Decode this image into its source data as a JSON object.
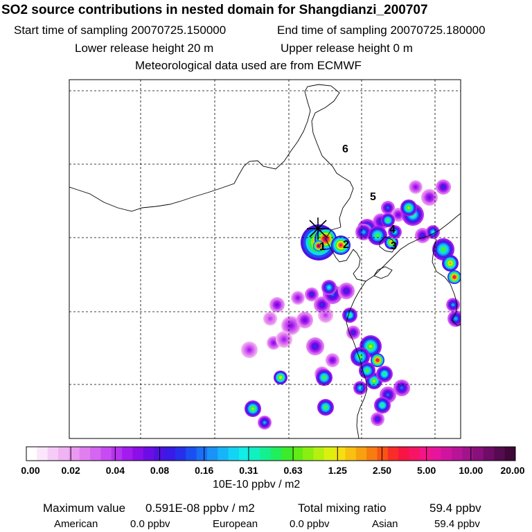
{
  "header": {
    "title": "SO2 source contributions in nested domain for Shangdianzi_200707",
    "start_label": "Start time of sampling 20070725.150000",
    "end_label": "End time of sampling 20070725.180000",
    "lower_label": "Lower release height   20 m",
    "upper_label": "Upper release height    0 m",
    "met_label": "Meteorological data used are from ECMWF"
  },
  "chart_data": {
    "type": "heatmap",
    "title": "SO2 source contributions in nested domain for Shangdianzi_200707",
    "colorbar": {
      "ticks": [
        "0.00",
        "0.02",
        "0.04",
        "0.08",
        "0.16",
        "0.31",
        "0.63",
        "1.25",
        "2.50",
        "5.00",
        "10.00",
        "20.00"
      ],
      "unit": "10E-10 ppbv / m2",
      "colors": [
        "#ffffff",
        "#fbe6fb",
        "#f5ccf7",
        "#f0b3f3",
        "#eb99f0",
        "#e17ff0",
        "#d466f2",
        "#c64cf2",
        "#b733f0",
        "#a21cee",
        "#8a0fe8",
        "#6d0de5",
        "#4f12e3",
        "#3a1ae6",
        "#2630ea",
        "#1a4ff0",
        "#1a6ff4",
        "#1a92f7",
        "#18b4f8",
        "#14d4f4",
        "#10eee6",
        "#10f0c0",
        "#14f090",
        "#20ee5c",
        "#3aec2c",
        "#60ec14",
        "#8aee10",
        "#b4f010",
        "#dcf010",
        "#f4e010",
        "#f8c010",
        "#f8a010",
        "#f87c10",
        "#f85414",
        "#f82c28",
        "#f81444",
        "#f81464",
        "#f41488",
        "#e8149c",
        "#d014a0",
        "#b81498",
        "#a0148c",
        "#880f7c",
        "#6e0c66",
        "#560a50",
        "#400838"
      ]
    },
    "receptor_labels": [
      "1",
      "2",
      "3",
      "4",
      "5",
      "6"
    ],
    "maximum": {
      "label": "Maximum value",
      "value": "0.591E-08 ppbv / m2"
    },
    "total": {
      "label": "Total mixing ratio",
      "value": "59.4 ppbv"
    },
    "breakdown": [
      {
        "region": "American",
        "value": "0.0 ppbv"
      },
      {
        "region": "European",
        "value": "0.0 ppbv"
      },
      {
        "region": "Asian",
        "value": "59.4 ppbv"
      }
    ],
    "plumes": [
      {
        "lvl": 0.18,
        "r": 10
      },
      {
        "lvl": 0.22,
        "r": 14
      },
      {
        "lvl": 0.25,
        "r": 12
      },
      {
        "lvl": 0.18,
        "r": 11
      },
      {
        "lvl": 0.22,
        "r": 10
      },
      {
        "lvl": 0.2,
        "r": 12
      },
      {
        "lvl": 0.25,
        "r": 11
      },
      {
        "lvl": 0.22,
        "r": 10
      },
      {
        "lvl": 0.2,
        "r": 12
      },
      {
        "lvl": 0.3,
        "r": 12
      },
      {
        "lvl": 0.35,
        "r": 14
      },
      {
        "lvl": 0.3,
        "r": 12
      },
      {
        "lvl": 0.25,
        "r": 10
      },
      {
        "lvl": 0.28,
        "r": 11
      },
      {
        "lvl": 0.3,
        "r": 13
      },
      {
        "lvl": 0.22,
        "r": 10
      },
      {
        "lvl": 0.25,
        "r": 12
      },
      {
        "lvl": 0.3,
        "r": 11
      },
      {
        "lvl": 0.3,
        "r": 11
      },
      {
        "lvl": 0.35,
        "r": 10
      },
      {
        "lvl": 0.32,
        "r": 12
      },
      {
        "lvl": 0.25,
        "r": 10
      },
      {
        "lvl": 0.5,
        "r": 16
      },
      {
        "lvl": 0.6,
        "r": 12
      },
      {
        "lvl": 0.45,
        "r": 14
      },
      {
        "lvl": 0.4,
        "r": 12
      },
      {
        "lvl": 0.55,
        "r": 14
      },
      {
        "lvl": 0.7,
        "r": 10
      },
      {
        "lvl": 0.45,
        "r": 10
      },
      {
        "lvl": 0.35,
        "r": 12
      },
      {
        "lvl": 0.5,
        "r": 12
      },
      {
        "lvl": 0.3,
        "r": 10
      },
      {
        "lvl": 0.75,
        "r": 26
      },
      {
        "lvl": 0.9,
        "r": 16
      },
      {
        "lvl": 0.98,
        "r": 8
      },
      {
        "lvl": 0.8,
        "r": 14
      },
      {
        "lvl": 0.55,
        "r": 16
      },
      {
        "lvl": 0.7,
        "r": 12
      },
      {
        "lvl": 0.85,
        "r": 10
      },
      {
        "lvl": 0.4,
        "r": 10
      },
      {
        "lvl": 0.4,
        "r": 12
      },
      {
        "lvl": 0.45,
        "r": 10
      },
      {
        "lvl": 0.6,
        "r": 16
      },
      {
        "lvl": 0.85,
        "r": 10
      },
      {
        "lvl": 0.55,
        "r": 14
      },
      {
        "lvl": 0.6,
        "r": 12
      },
      {
        "lvl": 0.55,
        "r": 12
      },
      {
        "lvl": 0.5,
        "r": 12
      },
      {
        "lvl": 0.65,
        "r": 10
      },
      {
        "lvl": 0.55,
        "r": 12
      },
      {
        "lvl": 0.4,
        "r": 10
      },
      {
        "lvl": 0.55,
        "r": 12
      },
      {
        "lvl": 0.6,
        "r": 12
      },
      {
        "lvl": 0.45,
        "r": 10
      },
      {
        "lvl": 0.35,
        "r": 12
      },
      {
        "lvl": 0.3,
        "r": 10
      },
      {
        "lvl": 0.55,
        "r": 10
      },
      {
        "lvl": 0.3,
        "r": 10
      },
      {
        "lvl": 0.45,
        "r": 11
      },
      {
        "lvl": 0.5,
        "r": 11
      }
    ]
  }
}
